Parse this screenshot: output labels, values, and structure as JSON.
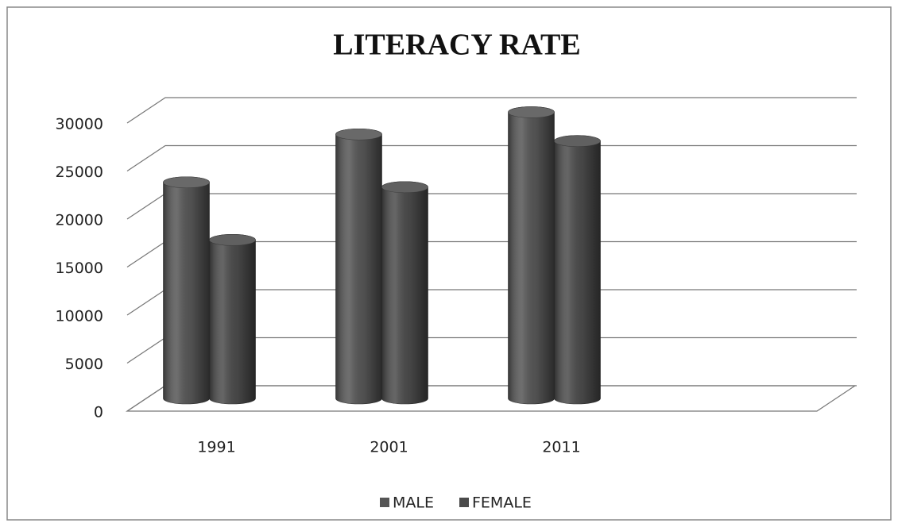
{
  "chart_data": {
    "type": "bar3d",
    "title": "LITERACY RATE",
    "categories": [
      "1991",
      "2001",
      "2011",
      null
    ],
    "series": [
      {
        "name": "MALE",
        "color": "#555555",
        "values": [
          22500,
          27500,
          29800,
          null
        ]
      },
      {
        "name": "FEMALE",
        "color": "#4a4a4a",
        "values": [
          16500,
          22000,
          26800,
          null
        ]
      }
    ],
    "ylim": [
      0,
      30000
    ],
    "yticks": [
      0,
      5000,
      10000,
      15000,
      20000,
      25000,
      30000
    ],
    "grid": true,
    "legend": "bottom"
  }
}
